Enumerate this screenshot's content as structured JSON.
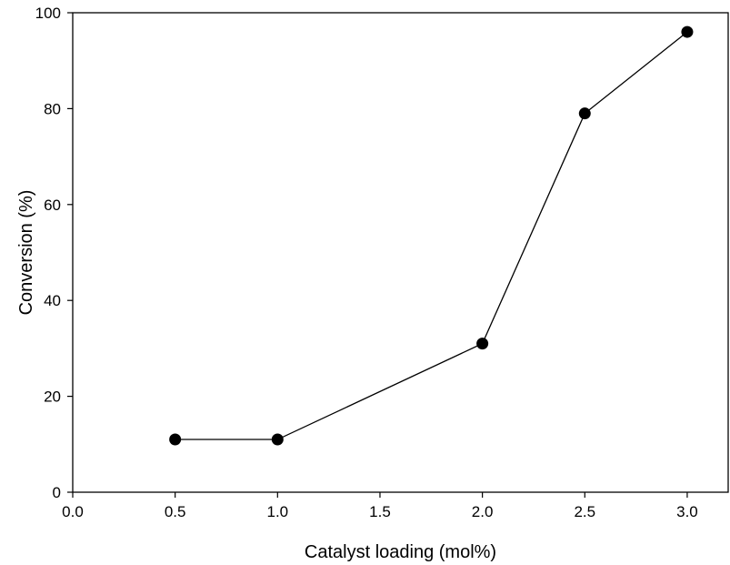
{
  "chart_data": {
    "type": "line",
    "title": "",
    "xlabel": "Catalyst loading (mol%)",
    "ylabel": "Conversion (%)",
    "xlim": [
      0.0,
      3.2
    ],
    "ylim": [
      0,
      100
    ],
    "x_ticks": [
      "0.0",
      "0.5",
      "1.0",
      "1.5",
      "2.0",
      "2.5",
      "3.0"
    ],
    "y_ticks": [
      "0",
      "20",
      "40",
      "60",
      "80",
      "100"
    ],
    "grid": false,
    "legend": "none",
    "series": [
      {
        "x": [
          0.5,
          1.0,
          2.0,
          2.5,
          3.0
        ],
        "y": [
          11,
          11,
          31,
          79,
          96
        ],
        "color": "#000000",
        "marker": "filled-circle"
      }
    ]
  }
}
